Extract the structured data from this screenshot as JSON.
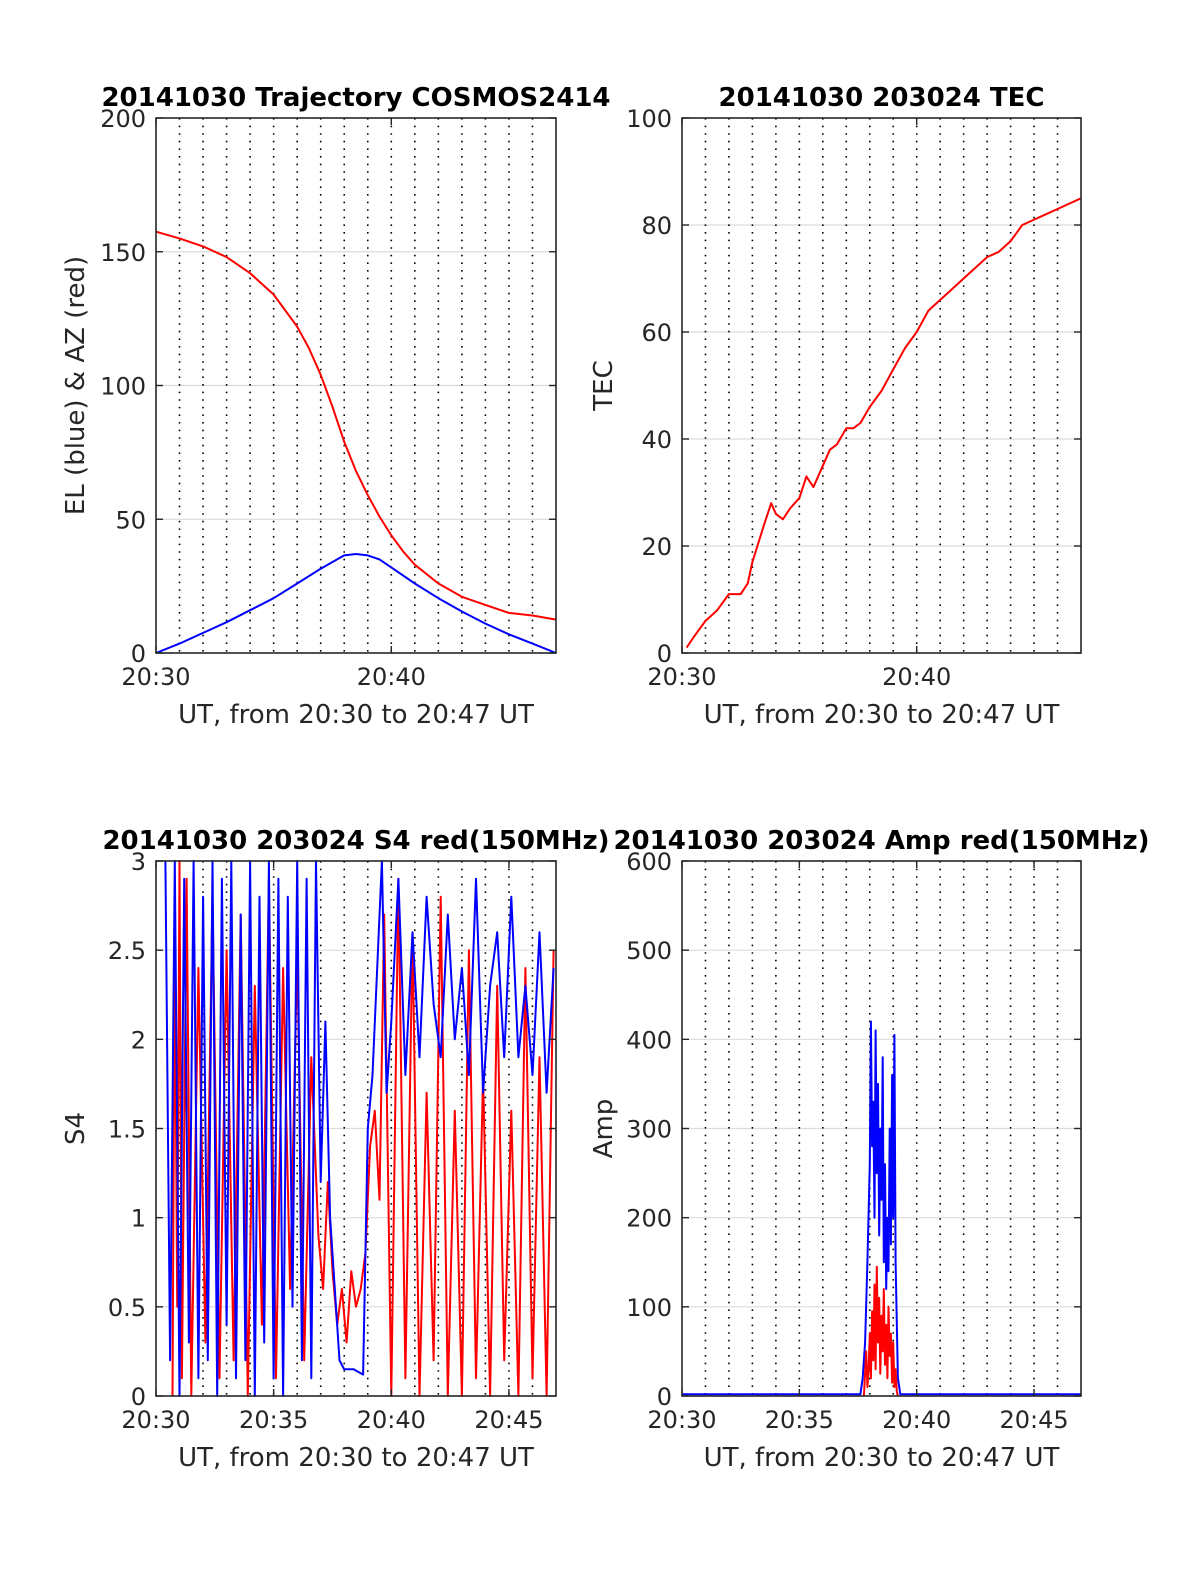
{
  "chart_data": [
    {
      "type": "line",
      "title": "20141030 Trajectory COSMOS2414",
      "xlabel": "UT, from 20:30 to 20:47 UT",
      "ylabel": "EL (blue) & AZ (red)",
      "xlim": [
        0,
        17
      ],
      "ylim": [
        0,
        200
      ],
      "x_unit": "minutes after 20:30 UT",
      "xticks": [
        {
          "v": 0,
          "label": "20:30"
        },
        {
          "v": 10,
          "label": "20:40"
        }
      ],
      "yticks": [
        {
          "v": 0,
          "label": "0"
        },
        {
          "v": 50,
          "label": "50"
        },
        {
          "v": 100,
          "label": "100"
        },
        {
          "v": 150,
          "label": "150"
        },
        {
          "v": 200,
          "label": "200"
        }
      ],
      "grid": true,
      "series": [
        {
          "name": "AZ",
          "color": "#ff0000",
          "x": [
            0,
            1,
            2,
            3,
            4,
            5,
            6,
            6.5,
            7,
            7.5,
            8,
            8.5,
            9,
            9.5,
            10,
            10.5,
            11,
            12,
            13,
            14,
            15,
            16,
            17
          ],
          "y": [
            157.5,
            155,
            152,
            148,
            142,
            134,
            122,
            114,
            104,
            92,
            79,
            68,
            59,
            51,
            44,
            38,
            33,
            26,
            21,
            18,
            15,
            14,
            12.5
          ]
        },
        {
          "name": "EL",
          "color": "#0000ff",
          "x": [
            0,
            1,
            2,
            3,
            4,
            5,
            6,
            7,
            7.5,
            8,
            8.5,
            9,
            9.5,
            10,
            11,
            12,
            13,
            14,
            15,
            16,
            17
          ],
          "y": [
            0,
            3.5,
            7.5,
            11.5,
            16,
            20.5,
            26,
            31.5,
            34,
            36.5,
            37,
            36.5,
            35,
            32,
            26,
            20.5,
            15.5,
            11,
            7,
            3.5,
            0
          ]
        }
      ]
    },
    {
      "type": "line",
      "title": "20141030 203024 TEC",
      "xlabel": "UT, from 20:30 to 20:47 UT",
      "ylabel": "TEC",
      "xlim": [
        0,
        17
      ],
      "ylim": [
        0,
        100
      ],
      "x_unit": "minutes after 20:30 UT",
      "xticks": [
        {
          "v": 0,
          "label": "20:30"
        },
        {
          "v": 10,
          "label": "20:40"
        }
      ],
      "yticks": [
        {
          "v": 0,
          "label": "0"
        },
        {
          "v": 20,
          "label": "20"
        },
        {
          "v": 40,
          "label": "40"
        },
        {
          "v": 60,
          "label": "60"
        },
        {
          "v": 80,
          "label": "80"
        },
        {
          "v": 100,
          "label": "100"
        }
      ],
      "grid": true,
      "series": [
        {
          "name": "TEC",
          "color": "#ff0000",
          "x": [
            0.2,
            0.5,
            1,
            1.5,
            2,
            2.5,
            2.8,
            3,
            3.5,
            3.8,
            4,
            4.3,
            4.6,
            5,
            5.3,
            5.6,
            6,
            6.3,
            6.6,
            7,
            7.3,
            7.6,
            8,
            8.5,
            9,
            9.5,
            10,
            10.5,
            11,
            11.5,
            12,
            12.5,
            13,
            13.5,
            14,
            14.5,
            15,
            15.5,
            16,
            16.5,
            17
          ],
          "y": [
            1,
            3,
            6,
            8,
            11,
            11,
            13,
            17,
            24,
            28,
            26,
            25,
            27,
            29,
            33,
            31,
            35,
            38,
            39,
            42,
            42,
            43,
            46,
            49,
            53,
            57,
            60,
            64,
            66,
            68,
            70,
            72,
            74,
            75,
            77,
            80,
            81,
            82,
            83,
            84,
            85
          ]
        }
      ]
    },
    {
      "type": "line",
      "title": "20141030 203024 S4 red(150MHz)",
      "xlabel": "UT, from 20:30 to 20:47 UT",
      "ylabel": "S4",
      "xlim": [
        0,
        17
      ],
      "ylim": [
        0,
        3
      ],
      "x_unit": "minutes after 20:30 UT",
      "xticks": [
        {
          "v": 0,
          "label": "20:30"
        },
        {
          "v": 5,
          "label": "20:35"
        },
        {
          "v": 10,
          "label": "20:40"
        },
        {
          "v": 15,
          "label": "20:45"
        }
      ],
      "yticks": [
        {
          "v": 0,
          "label": "0"
        },
        {
          "v": 0.5,
          "label": "0.5"
        },
        {
          "v": 1,
          "label": "1"
        },
        {
          "v": 1.5,
          "label": "1.5"
        },
        {
          "v": 2,
          "label": "2"
        },
        {
          "v": 2.5,
          "label": "2.5"
        },
        {
          "v": 3,
          "label": "3"
        }
      ],
      "grid": true,
      "series": [
        {
          "name": "S4 red",
          "color": "#ff0000",
          "x": [
            0.7,
            0.8,
            0.9,
            1.0,
            1.1,
            1.3,
            1.5,
            1.8,
            2.1,
            2.4,
            2.7,
            3.0,
            3.3,
            3.6,
            3.9,
            4.2,
            4.5,
            4.8,
            5.1,
            5.4,
            5.7,
            6.0,
            6.3,
            6.6,
            6.9,
            7.1,
            7.3,
            7.5,
            7.7,
            7.9,
            8.1,
            8.3,
            8.5,
            8.7,
            8.9,
            9.1,
            9.3,
            9.5,
            9.7,
            10.0,
            10.3,
            10.6,
            10.9,
            11.2,
            11.5,
            11.8,
            12.1,
            12.4,
            12.7,
            13.0,
            13.3,
            13.6,
            13.9,
            14.2,
            14.5,
            14.8,
            15.1,
            15.4,
            15.7,
            16.0,
            16.3,
            16.6,
            16.9
          ],
          "y": [
            0,
            2.6,
            0.5,
            3,
            0.1,
            2.9,
            0,
            2.4,
            0.3,
            2.8,
            0.1,
            2.5,
            0.2,
            2.7,
            0,
            2.3,
            0.4,
            2.9,
            0.1,
            2.4,
            0.6,
            2.5,
            0.2,
            1.9,
            0.9,
            0.6,
            1.2,
            0.7,
            0.4,
            0.6,
            0.3,
            0.7,
            0.5,
            0.6,
            0.8,
            1.4,
            1.6,
            1.1,
            2.7,
            0,
            2.9,
            0.1,
            2.6,
            0,
            1.7,
            0.2,
            2.8,
            0,
            1.6,
            0,
            2.5,
            0.1,
            1.8,
            0,
            2.3,
            0.2,
            1.6,
            0,
            2.4,
            0.1,
            1.9,
            0,
            2.5
          ]
        },
        {
          "name": "S4 blue",
          "color": "#0000ff",
          "x": [
            0.4,
            0.6,
            0.8,
            1.0,
            1.2,
            1.4,
            1.6,
            1.8,
            2.0,
            2.2,
            2.4,
            2.6,
            2.8,
            3.0,
            3.2,
            3.4,
            3.6,
            3.8,
            4.0,
            4.2,
            4.4,
            4.6,
            4.8,
            5.0,
            5.2,
            5.4,
            5.6,
            5.8,
            6.0,
            6.2,
            6.4,
            6.6,
            6.8,
            7.0,
            7.2,
            7.4,
            7.6,
            7.8,
            8.0,
            8.4,
            8.8,
            9.0,
            9.2,
            9.4,
            9.6,
            9.8,
            10.0,
            10.3,
            10.6,
            10.9,
            11.2,
            11.5,
            11.8,
            12.1,
            12.4,
            12.7,
            13.0,
            13.3,
            13.6,
            13.9,
            14.2,
            14.5,
            14.8,
            15.1,
            15.4,
            15.7,
            16.0,
            16.3,
            16.6,
            16.9
          ],
          "y": [
            3,
            0.2,
            3,
            0,
            2.9,
            0.3,
            3,
            0.1,
            2.8,
            0.2,
            3,
            0,
            2.9,
            0.4,
            3,
            0.1,
            2.7,
            0.2,
            3,
            0,
            2.8,
            0.3,
            3,
            0.1,
            2.9,
            0,
            2.8,
            0.5,
            3,
            0.2,
            2.9,
            0.1,
            3,
            1.2,
            2.1,
            1.0,
            0.6,
            0.2,
            0.15,
            0.15,
            0.12,
            1.5,
            1.8,
            2.4,
            3,
            1.7,
            2.1,
            2.9,
            1.8,
            2.6,
            1.9,
            2.8,
            2.2,
            1.9,
            2.7,
            2.0,
            2.4,
            1.8,
            2.9,
            1.7,
            2.3,
            2.6,
            1.9,
            2.8,
            1.9,
            2.3,
            1.8,
            2.6,
            1.7,
            2.4
          ]
        }
      ]
    },
    {
      "type": "line",
      "title": "20141030 203024 Amp red(150MHz)",
      "xlabel": "UT, from 20:30 to 20:47 UT",
      "ylabel": "Amp",
      "xlim": [
        0,
        17
      ],
      "ylim": [
        0,
        600
      ],
      "x_unit": "minutes after 20:30 UT",
      "xticks": [
        {
          "v": 0,
          "label": "20:30"
        },
        {
          "v": 5,
          "label": "20:35"
        },
        {
          "v": 10,
          "label": "20:40"
        },
        {
          "v": 15,
          "label": "20:45"
        }
      ],
      "yticks": [
        {
          "v": 0,
          "label": "0"
        },
        {
          "v": 100,
          "label": "100"
        },
        {
          "v": 200,
          "label": "200"
        },
        {
          "v": 300,
          "label": "300"
        },
        {
          "v": 400,
          "label": "400"
        },
        {
          "v": 500,
          "label": "500"
        },
        {
          "v": 600,
          "label": "600"
        }
      ],
      "grid": true,
      "series": [
        {
          "name": "Amp blue",
          "color": "#0000ff",
          "x": [
            0,
            7.6,
            7.7,
            7.8,
            7.9,
            8.0,
            8.05,
            8.1,
            8.15,
            8.2,
            8.25,
            8.3,
            8.35,
            8.4,
            8.45,
            8.5,
            8.55,
            8.6,
            8.65,
            8.7,
            8.75,
            8.8,
            8.85,
            8.9,
            8.95,
            9.0,
            9.05,
            9.1,
            9.2,
            9.3,
            17
          ],
          "y": [
            2,
            2,
            20,
            60,
            150,
            260,
            420,
            280,
            330,
            200,
            410,
            250,
            350,
            180,
            300,
            220,
            380,
            150,
            260,
            120,
            200,
            140,
            300,
            170,
            360,
            200,
            405,
            150,
            20,
            2,
            2
          ]
        },
        {
          "name": "Amp red",
          "color": "#ff0000",
          "x": [
            7.75,
            7.85,
            7.9,
            7.95,
            8.0,
            8.05,
            8.1,
            8.15,
            8.2,
            8.25,
            8.3,
            8.35,
            8.4,
            8.45,
            8.5,
            8.55,
            8.6,
            8.65,
            8.7,
            8.75,
            8.8,
            8.85,
            8.9,
            8.95,
            9.0,
            9.05,
            9.1,
            9.15,
            9.2
          ],
          "y": [
            0,
            50,
            10,
            30,
            70,
            20,
            95,
            40,
            125,
            30,
            145,
            60,
            110,
            25,
            90,
            50,
            120,
            35,
            80,
            20,
            100,
            45,
            70,
            15,
            60,
            10,
            30,
            5,
            0
          ]
        }
      ]
    }
  ]
}
